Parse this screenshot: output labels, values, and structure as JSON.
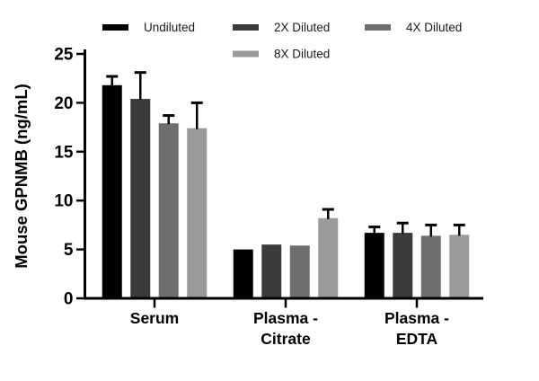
{
  "chart_data": {
    "type": "bar",
    "title": "",
    "ylabel": "Mouse GPNMB (ng/mL)",
    "xlabel": "",
    "ylim": [
      0,
      25
    ],
    "yticks": [
      0,
      5,
      10,
      15,
      20,
      25
    ],
    "grid": false,
    "legend_position": "top",
    "error_bars": "upper",
    "categories": [
      "Serum",
      "Plasma -\nCitrate",
      "Plasma -\nEDTA"
    ],
    "series": [
      {
        "name": "Undiluted",
        "color": "#000000",
        "values": [
          21.8,
          5.0,
          6.7
        ],
        "errors": [
          0.9,
          0,
          0.6
        ]
      },
      {
        "name": "2X Diluted",
        "color": "#3b3b3b",
        "values": [
          20.4,
          5.5,
          6.7
        ],
        "errors": [
          2.7,
          0,
          1.0
        ]
      },
      {
        "name": "4X Diluted",
        "color": "#6f6f6f",
        "values": [
          17.9,
          5.4,
          6.4
        ],
        "errors": [
          0.8,
          0,
          1.1
        ]
      },
      {
        "name": "8X Diluted",
        "color": "#9a9a9a",
        "values": [
          17.4,
          8.2,
          6.5
        ],
        "errors": [
          2.6,
          0.9,
          1.0
        ]
      }
    ]
  }
}
